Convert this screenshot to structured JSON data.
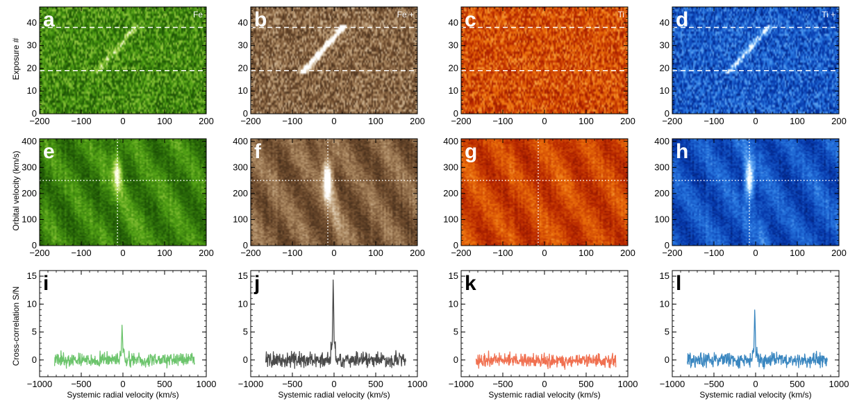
{
  "figure": {
    "row_labels": {
      "top_ylabel": "Exposure #",
      "mid_ylabel": "Orbital velocity (km/s)",
      "bottom_ylabel": "Cross-correlation S/N",
      "bottom_xlabel": "Systemic radial velocity (km/s)"
    }
  },
  "chart_data": [
    {
      "type": "heatmap",
      "panel": "a",
      "species": "Fe",
      "colormap": "green",
      "xlim": [
        -200,
        200
      ],
      "ylim": [
        0,
        47
      ],
      "x_ticks": [
        "-200",
        "-100",
        "0",
        "100",
        "200"
      ],
      "y_ticks": [
        "0",
        "10",
        "20",
        "30",
        "40"
      ],
      "ylabel": "Exposure #",
      "dashed_lines_y": [
        19,
        38
      ],
      "trace": {
        "x_start": -60,
        "y_start": 19,
        "x_end": 30,
        "y_end": 38,
        "strength": 0.35
      }
    },
    {
      "type": "heatmap",
      "panel": "b",
      "species": "Fe +",
      "colormap": "brown",
      "xlim": [
        -200,
        200
      ],
      "ylim": [
        0,
        47
      ],
      "x_ticks": [
        "-200",
        "-100",
        "0",
        "100",
        "200"
      ],
      "y_ticks": [
        "0",
        "10",
        "20",
        "30",
        "40"
      ],
      "dashed_lines_y": [
        19,
        38
      ],
      "trace": {
        "x_start": -70,
        "y_start": 19,
        "x_end": 20,
        "y_end": 38,
        "strength": 0.8
      }
    },
    {
      "type": "heatmap",
      "panel": "c",
      "species": "Ti",
      "colormap": "red",
      "xlim": [
        -200,
        200
      ],
      "ylim": [
        0,
        47
      ],
      "x_ticks": [
        "-200",
        "-100",
        "0",
        "100",
        "200"
      ],
      "y_ticks": [
        "0",
        "10",
        "20",
        "30",
        "40"
      ],
      "dashed_lines_y": [
        19,
        38
      ],
      "trace": null
    },
    {
      "type": "heatmap",
      "panel": "d",
      "species": "Ti +",
      "colormap": "blue",
      "xlim": [
        -200,
        200
      ],
      "ylim": [
        0,
        47
      ],
      "x_ticks": [
        "-200",
        "-100",
        "0",
        "100",
        "200"
      ],
      "y_ticks": [
        "0",
        "10",
        "20",
        "30",
        "40"
      ],
      "dashed_lines_y": [
        19,
        38
      ],
      "trace": {
        "x_start": -60,
        "y_start": 19,
        "x_end": 30,
        "y_end": 38,
        "strength": 0.45
      }
    },
    {
      "type": "heatmap",
      "panel": "e",
      "colormap": "green",
      "xlim": [
        -200,
        200
      ],
      "ylim": [
        0,
        410
      ],
      "x_ticks": [
        "-200",
        "-100",
        "0",
        "100",
        "200"
      ],
      "y_ticks": [
        "0",
        "100",
        "200",
        "300",
        "400"
      ],
      "ylabel": "Orbital velocity (km/s)",
      "dotted_x": -13,
      "dotted_y": 250,
      "peak": {
        "x": -13,
        "y": 280,
        "strength": 0.6
      }
    },
    {
      "type": "heatmap",
      "panel": "f",
      "colormap": "brown",
      "xlim": [
        -200,
        200
      ],
      "ylim": [
        0,
        410
      ],
      "x_ticks": [
        "-200",
        "-100",
        "0",
        "100",
        "200"
      ],
      "y_ticks": [
        "0",
        "100",
        "200",
        "300",
        "400"
      ],
      "dotted_x": -15,
      "dotted_y": 250,
      "peak": {
        "x": -15,
        "y": 250,
        "strength": 0.9
      }
    },
    {
      "type": "heatmap",
      "panel": "g",
      "colormap": "red",
      "xlim": [
        -200,
        200
      ],
      "ylim": [
        0,
        410
      ],
      "x_ticks": [
        "-200",
        "-100",
        "0",
        "100",
        "200"
      ],
      "y_ticks": [
        "0",
        "100",
        "200",
        "300",
        "400"
      ],
      "dotted_x": -15,
      "dotted_y": 250,
      "peak": null
    },
    {
      "type": "heatmap",
      "panel": "h",
      "colormap": "blue",
      "xlim": [
        -200,
        200
      ],
      "ylim": [
        0,
        410
      ],
      "x_ticks": [
        "-200",
        "-100",
        "0",
        "100",
        "200"
      ],
      "y_ticks": [
        "0",
        "100",
        "200",
        "300",
        "400"
      ],
      "dotted_x": -15,
      "dotted_y": 250,
      "peak": {
        "x": -15,
        "y": 250,
        "strength": 0.7
      }
    },
    {
      "type": "line",
      "panel": "i",
      "color": "#6cc46c",
      "xlim": [
        -1000,
        1000
      ],
      "ylim": [
        -3,
        16
      ],
      "x_ticks": [
        "-1000",
        "-500",
        "0",
        "500",
        "1000"
      ],
      "y_ticks": [
        "0",
        "5",
        "10",
        "15"
      ],
      "xlabel": "Systemic radial velocity (km/s)",
      "ylabel": "Cross-correlation S/N",
      "x_range": [
        -820,
        860
      ],
      "peak_x": -10,
      "peak_value": 6.3,
      "noise": 1.0
    },
    {
      "type": "line",
      "panel": "j",
      "color": "#4a4a4a",
      "xlim": [
        -1000,
        1000
      ],
      "ylim": [
        -3,
        16
      ],
      "x_ticks": [
        "-1000",
        "-500",
        "0",
        "500",
        "1000"
      ],
      "y_ticks": [
        "0",
        "5",
        "10",
        "15"
      ],
      "xlabel": "Systemic radial velocity (km/s)",
      "x_range": [
        -820,
        860
      ],
      "peak_x": -10,
      "peak_value": 15.0,
      "noise": 1.1
    },
    {
      "type": "line",
      "panel": "k",
      "color": "#f07050",
      "xlim": [
        -1000,
        1000
      ],
      "ylim": [
        -3,
        16
      ],
      "x_ticks": [
        "-1000",
        "-500",
        "0",
        "500",
        "1000"
      ],
      "y_ticks": [
        "0",
        "5",
        "10",
        "15"
      ],
      "xlabel": "Systemic radial velocity (km/s)",
      "x_range": [
        -820,
        860
      ],
      "peak_x": null,
      "peak_value": null,
      "noise": 1.0
    },
    {
      "type": "line",
      "panel": "l",
      "color": "#3b87c0",
      "xlim": [
        -1000,
        1000
      ],
      "ylim": [
        -3,
        16
      ],
      "x_ticks": [
        "-1000",
        "-500",
        "0",
        "500",
        "1000"
      ],
      "y_ticks": [
        "0",
        "5",
        "10",
        "15"
      ],
      "xlabel": "Systemic radial velocity (km/s)",
      "x_range": [
        -820,
        860
      ],
      "peak_x": -10,
      "peak_value": 9.2,
      "noise": 1.0
    }
  ]
}
